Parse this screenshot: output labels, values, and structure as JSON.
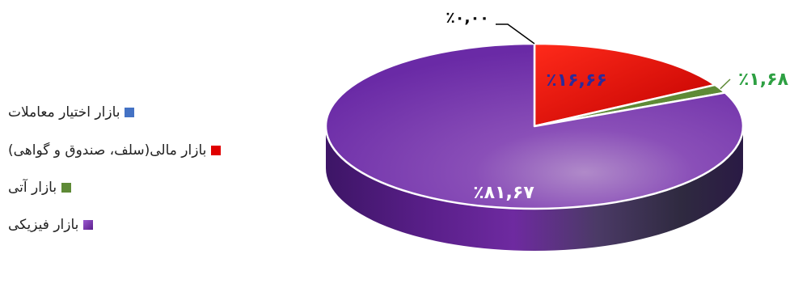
{
  "chart_data": {
    "type": "pie",
    "series": [
      {
        "name": "بازار اختیار معاملات",
        "value": 0.0,
        "label": "٪۰,۰۰",
        "color": "#4472c4"
      },
      {
        "name": "بازار مالی(سلف، صندوق و گواهی)",
        "value": 16.66,
        "label": "٪۱۶,۶۶",
        "color": "#e00000"
      },
      {
        "name": "بازار آتی",
        "value": 1.68,
        "label": "٪۱,۶۸",
        "color": "#5e8a36"
      },
      {
        "name": "بازار فیزیکی",
        "value": 81.67,
        "label": "٪۸۱,۶۷",
        "color": "#7030a0"
      }
    ],
    "legend_position": "left",
    "label_colors": {
      "financial": "#2b2b9a",
      "futures": "#2ea043",
      "physical": "#ffffff",
      "options": "#000000"
    }
  }
}
